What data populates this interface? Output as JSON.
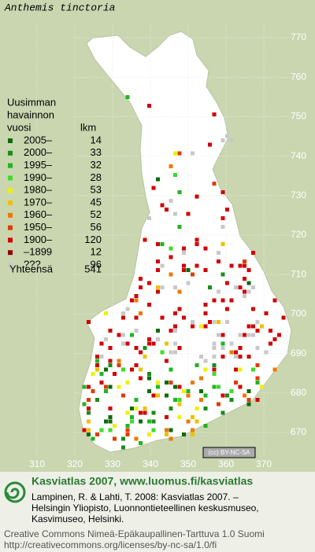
{
  "title": "Anthemis tinctoria",
  "legend": {
    "heading": [
      "Uusimman",
      "havainnon",
      "vuosi"
    ],
    "count_heading": "lkm",
    "items": [
      {
        "label": "2005–",
        "count": 14,
        "color": "#0b6b0b"
      },
      {
        "label": "2000–",
        "count": 33,
        "color": "#1a8c1a"
      },
      {
        "label": "1995–",
        "count": 32,
        "color": "#22b422"
      },
      {
        "label": "1990–",
        "count": 28,
        "color": "#3ddc2a"
      },
      {
        "label": "1980–",
        "count": 53,
        "color": "#f0f000"
      },
      {
        "label": "1970–",
        "count": 45,
        "color": "#f0c000"
      },
      {
        "label": "1960–",
        "count": 52,
        "color": "#f07800"
      },
      {
        "label": "1950–",
        "count": 56,
        "color": "#e03c00"
      },
      {
        "label": "1900–",
        "count": 120,
        "color": "#d00000"
      },
      {
        "label": "–1899",
        "count": 12,
        "color": "#900000"
      },
      {
        "label": "???",
        "count": 96,
        "color": "#c8c8c8"
      }
    ],
    "total_label": "Yhteensä",
    "total": 541
  },
  "axes": {
    "x_ticks": [
      310,
      320,
      330,
      340,
      350,
      360,
      370
    ],
    "y_ticks": [
      770,
      760,
      750,
      740,
      730,
      720,
      710,
      700,
      690,
      680,
      670
    ]
  },
  "license_badge": "(cc) BY-NC-SA",
  "footer": {
    "site": "Kasviatlas 2007, www.luomus.fi/kasviatlas",
    "citation": [
      "Lampinen, R. & Lahti, T. 2008: Kasviatlas 2007. –",
      "Helsingin Yliopisto, Luonnontieteellinen keskusmuseo,",
      "Kasvimuseo, Helsinki."
    ],
    "license": [
      "Creative Commons Nimeä-Epäkaupallinen-Tarttuva 1.0 Suomi",
      "http://creativecommons.org/licenses/by-nc-sa/1.0/fi"
    ]
  }
}
